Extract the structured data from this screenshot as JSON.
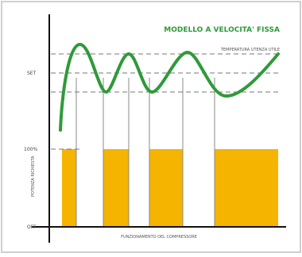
{
  "title": "MODELLO A VELOCITA' FISSA",
  "comfort_label": "TEMPERATURA UTENZA UTILE",
  "set_label": "SET",
  "hundred_label": "100%",
  "off_label": "OFF",
  "y_axis_label": "POTENZA RICHIESTA",
  "x_axis_label": "FUNZIONAMENTO DEL COMPRESSORE",
  "colors": {
    "curve": "#2f9a3a",
    "bars": "#f5b400",
    "title": "#2f9a3a",
    "axes": "#111111",
    "dashes": "#777777",
    "border": "#cfcfcf"
  },
  "compressor_cycles": [
    {
      "on": true
    },
    {
      "on": false
    },
    {
      "on": true
    },
    {
      "on": false
    },
    {
      "on": true
    },
    {
      "on": false
    },
    {
      "on": true
    }
  ]
}
